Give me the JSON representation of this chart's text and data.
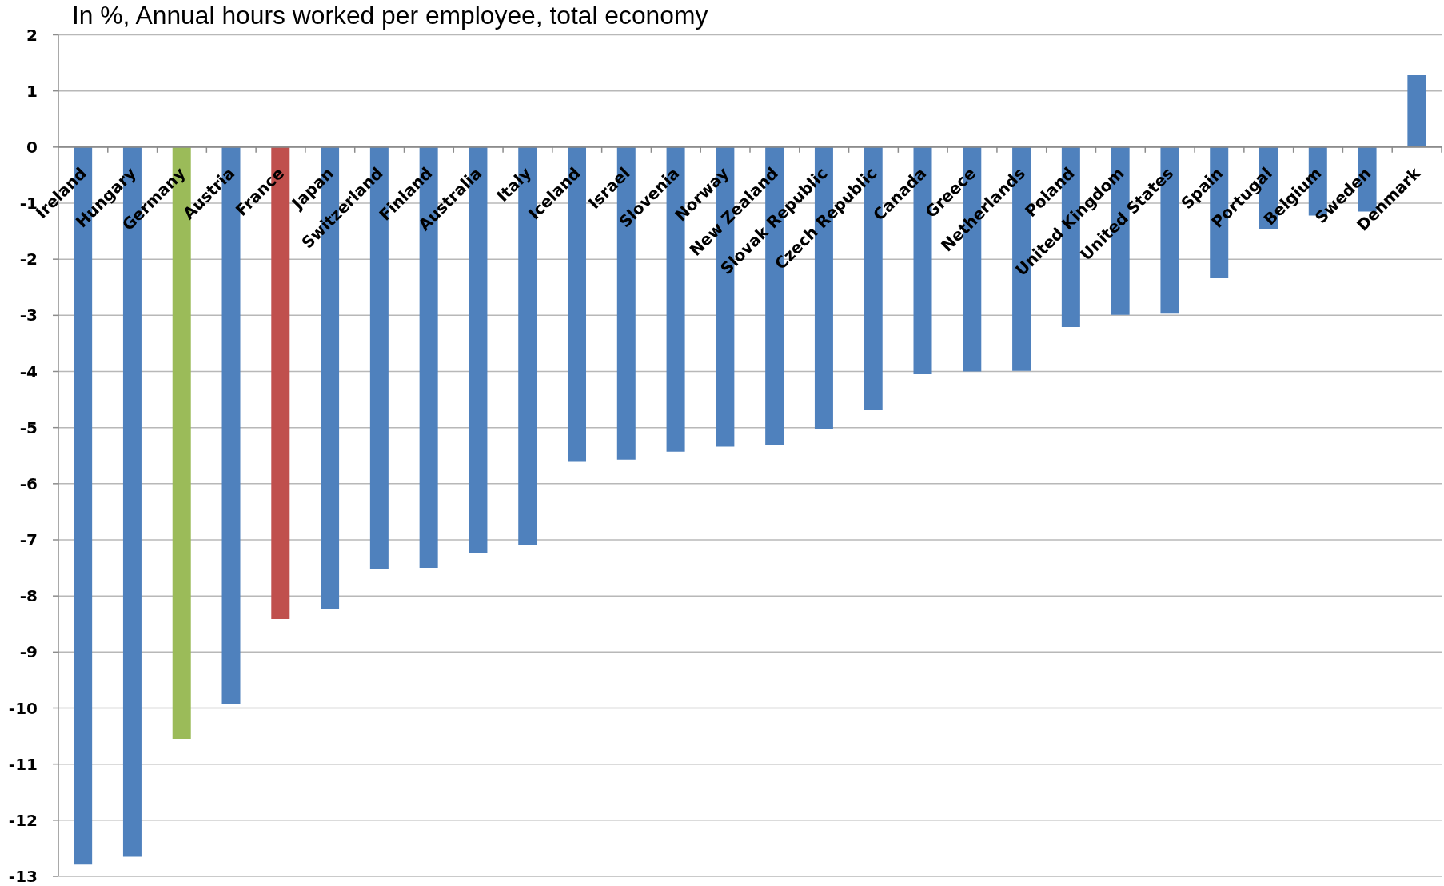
{
  "chart_data": {
    "type": "bar",
    "title": "In %, Annual hours worked per employee, total economy",
    "categories": [
      "Ireland",
      "Hungary",
      "Germany",
      "Austria",
      "France",
      "Japan",
      "Switzerland",
      "Finland",
      "Australia",
      "Italy",
      "Iceland",
      "Israel",
      "Slovenia",
      "Norway",
      "New Zealand",
      "Slovak Republic",
      "Czech Republic",
      "Canada",
      "Greece",
      "Netherlands",
      "Poland",
      "United Kingdom",
      "United States",
      "Spain",
      "Portugal",
      "Belgium",
      "Sweden",
      "Denmark"
    ],
    "values": [
      -12.79,
      -12.65,
      -10.55,
      -9.93,
      -8.41,
      -8.23,
      -7.52,
      -7.5,
      -7.24,
      -7.09,
      -5.61,
      -5.57,
      -5.43,
      -5.34,
      -5.31,
      -5.03,
      -4.69,
      -4.05,
      -4.0,
      -3.99,
      -3.21,
      -2.99,
      -2.97,
      -2.34,
      -1.47,
      -1.22,
      -1.15,
      1.28
    ],
    "colors": [
      "#4f81bd",
      "#4f81bd",
      "#9bbb59",
      "#4f81bd",
      "#c0504d",
      "#4f81bd",
      "#4f81bd",
      "#4f81bd",
      "#4f81bd",
      "#4f81bd",
      "#4f81bd",
      "#4f81bd",
      "#4f81bd",
      "#4f81bd",
      "#4f81bd",
      "#4f81bd",
      "#4f81bd",
      "#4f81bd",
      "#4f81bd",
      "#4f81bd",
      "#4f81bd",
      "#4f81bd",
      "#4f81bd",
      "#4f81bd",
      "#4f81bd",
      "#4f81bd",
      "#4f81bd",
      "#4f81bd"
    ],
    "ylim": [
      -13,
      2
    ],
    "yticks": [
      -13,
      -12,
      -11,
      -10,
      -9,
      -8,
      -7,
      -6,
      -5,
      -4,
      -3,
      -2,
      -1,
      0,
      1,
      2
    ],
    "grid": "y"
  }
}
